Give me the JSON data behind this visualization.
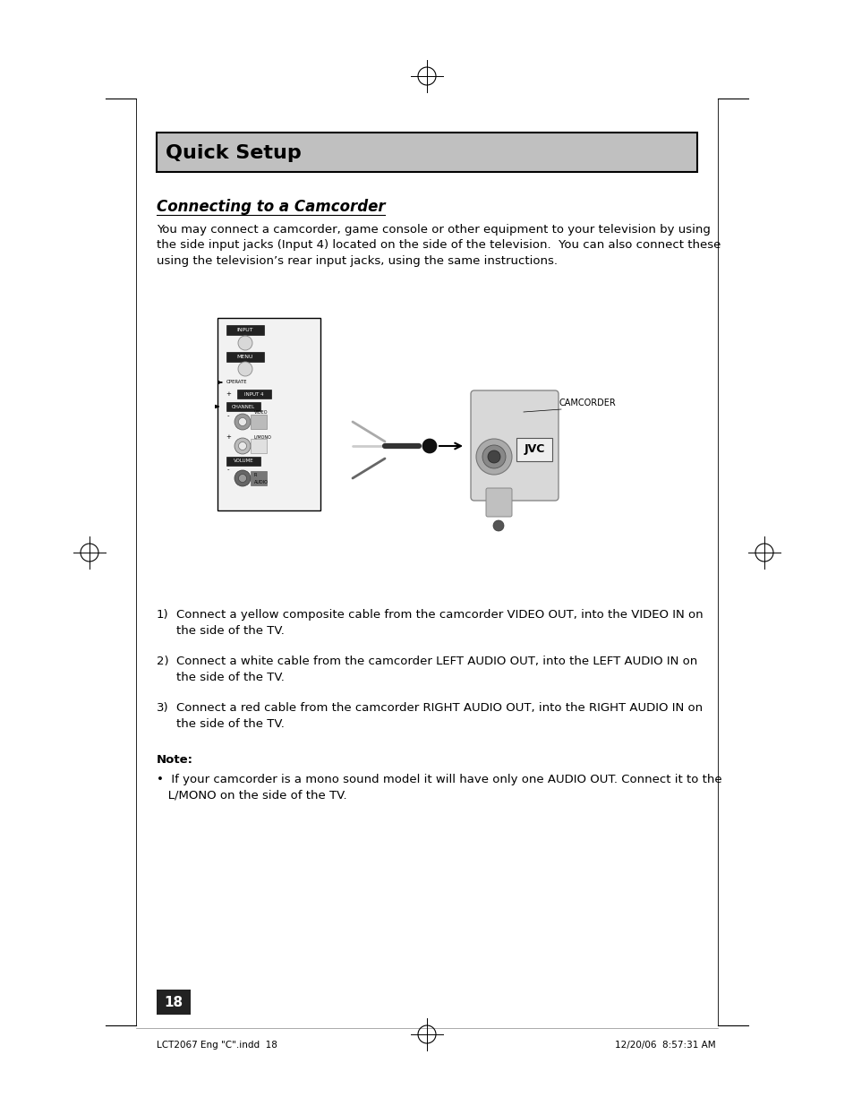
{
  "page_bg": "#ffffff",
  "title_bg": "#c0c0c0",
  "title_text": "Quick Setup",
  "title_fontsize": 16,
  "subtitle_text": "Connecting to a Camcorder",
  "subtitle_fontsize": 12,
  "body_text": "You may connect a camcorder, game console or other equipment to your television by using\nthe side input jacks (Input 4) located on the side of the television.  You can also connect these\nusing the television’s rear input jacks, using the same instructions.",
  "body_fontsize": 9.5,
  "step1": "Connect a yellow composite cable from the camcorder VIDEO OUT, into the VIDEO IN on\n   the side of the TV.",
  "step2": "Connect a white cable from the camcorder LEFT AUDIO OUT, into the LEFT AUDIO IN on\n   the side of the TV.",
  "step3": "Connect a red cable from the camcorder RIGHT AUDIO OUT, into the RIGHT AUDIO IN on\n   the side of the TV.",
  "note_label": "Note:",
  "note_text": "If your camcorder is a mono sound model it will have only one AUDIO OUT. Connect it to the\n  L/MONO on the side of the TV.",
  "page_number": "18",
  "footer_left": "LCT2067 Eng \"C\".indd  18",
  "footer_right": "12/20/06  8:57:31 AM"
}
